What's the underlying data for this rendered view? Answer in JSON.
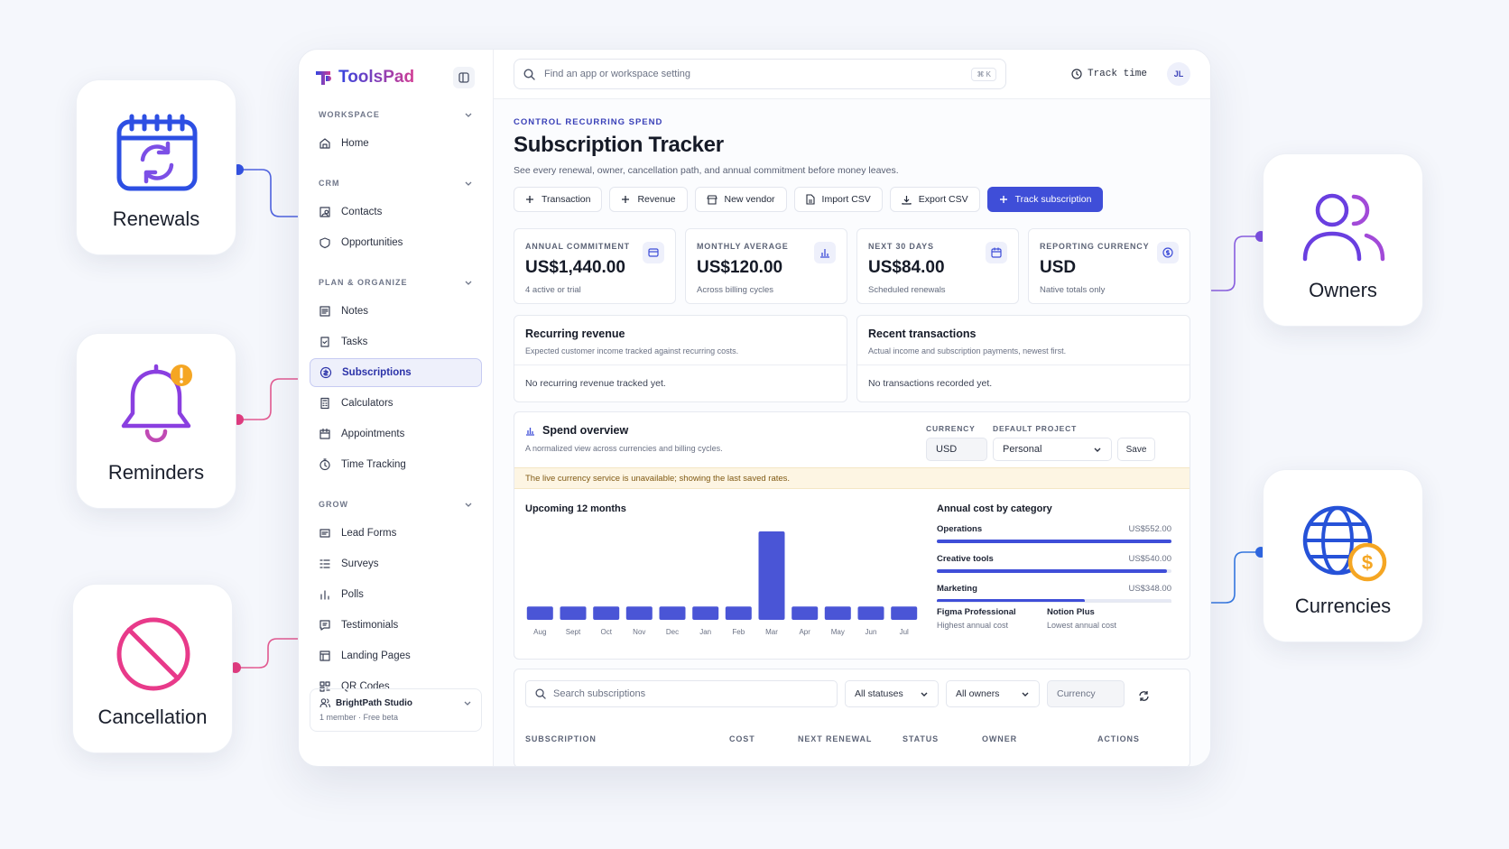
{
  "features": {
    "renewals": "Renewals",
    "reminders": "Reminders",
    "cancellation": "Cancellation",
    "owners": "Owners",
    "currencies": "Currencies"
  },
  "brand": {
    "name": "ToolsPad"
  },
  "sidebar": {
    "sections": [
      {
        "title": "WORKSPACE",
        "items": [
          "Home"
        ]
      },
      {
        "title": "CRM",
        "items": [
          "Contacts",
          "Opportunities"
        ]
      },
      {
        "title": "PLAN & ORGANIZE",
        "items": [
          "Notes",
          "Tasks",
          "Subscriptions",
          "Calculators",
          "Appointments",
          "Time Tracking"
        ]
      },
      {
        "title": "GROW",
        "items": [
          "Lead Forms",
          "Surveys",
          "Polls",
          "Testimonials",
          "Landing Pages",
          "QR Codes"
        ]
      }
    ],
    "active": "Subscriptions",
    "workspace": {
      "name": "BrightPath Studio",
      "meta": "1 member · Free beta"
    }
  },
  "topbar": {
    "search_placeholder": "Find an app or workspace setting",
    "shortcut": "⌘ K",
    "track_time": "Track time",
    "avatar": "JL"
  },
  "page": {
    "eyebrow": "CONTROL RECURRING SPEND",
    "title": "Subscription Tracker",
    "subtitle": "See every renewal, owner, cancellation path, and annual commitment before money leaves."
  },
  "actions": {
    "transaction": "Transaction",
    "revenue": "Revenue",
    "new_vendor": "New vendor",
    "import_csv": "Import CSV",
    "export_csv": "Export CSV",
    "track_subscription": "Track subscription"
  },
  "stats": [
    {
      "label": "ANNUAL COMMITMENT",
      "value": "US$1,440.00",
      "note": "4 active or trial",
      "icon": "wallet-icon"
    },
    {
      "label": "MONTHLY AVERAGE",
      "value": "US$120.00",
      "note": "Across billing cycles",
      "icon": "bar-chart-icon"
    },
    {
      "label": "NEXT 30 DAYS",
      "value": "US$84.00",
      "note": "Scheduled renewals",
      "icon": "calendar-icon"
    },
    {
      "label": "REPORTING CURRENCY",
      "value": "USD",
      "note": "Native totals only",
      "icon": "dollar-circle-icon"
    }
  ],
  "recurring_revenue": {
    "title": "Recurring revenue",
    "desc": "Expected customer income tracked against recurring costs.",
    "empty": "No recurring revenue tracked yet."
  },
  "recent_transactions": {
    "title": "Recent transactions",
    "desc": "Actual income and subscription payments, newest first.",
    "empty": "No transactions recorded yet."
  },
  "spend": {
    "title": "Spend overview",
    "desc": "A normalized view across currencies and billing cycles.",
    "currency_label": "CURRENCY",
    "currency_value": "USD",
    "project_label": "DEFAULT PROJECT",
    "project_value": "Personal",
    "save": "Save",
    "warning": "The live currency service is unavailable; showing the last saved rates.",
    "upcoming_title": "Upcoming 12 months",
    "category_title": "Annual cost by category",
    "categories": [
      {
        "name": "Operations",
        "amount": "US$552.00",
        "fraction": 1.0
      },
      {
        "name": "Creative tools",
        "amount": "US$540.00",
        "fraction": 0.98
      },
      {
        "name": "Marketing",
        "amount": "US$348.00",
        "fraction": 0.63
      }
    ],
    "highest": {
      "name": "Figma Professional",
      "label": "Highest annual cost"
    },
    "lowest": {
      "name": "Notion Plus",
      "label": "Lowest annual cost"
    }
  },
  "chart_data": {
    "type": "bar",
    "categories": [
      "Aug",
      "Sept",
      "Oct",
      "Nov",
      "Dec",
      "Jan",
      "Feb",
      "Mar",
      "Apr",
      "May",
      "Jun",
      "Jul"
    ],
    "values": [
      15,
      15,
      15,
      15,
      15,
      15,
      15,
      100,
      15,
      15,
      15,
      15
    ],
    "title": "Upcoming 12 months",
    "color": "#4a55d6"
  },
  "table": {
    "search_placeholder": "Search subscriptions",
    "status_filter": "All statuses",
    "owner_filter": "All owners",
    "currency_placeholder": "Currency",
    "columns": [
      "SUBSCRIPTION",
      "COST",
      "NEXT RENEWAL",
      "STATUS",
      "OWNER",
      "ACTIONS"
    ]
  }
}
